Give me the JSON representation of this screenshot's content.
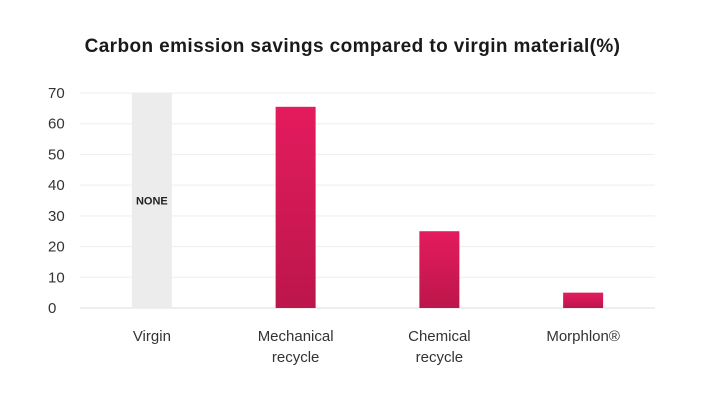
{
  "chart_data": {
    "type": "bar",
    "title": "Carbon emission savings compared to virgin material(%)",
    "categories": [
      [
        "Virgin"
      ],
      [
        "Mechanical",
        "recycle"
      ],
      [
        "Chemical",
        "recycle"
      ],
      [
        "Morphlon®"
      ]
    ],
    "values": [
      70,
      65.5,
      25,
      5
    ],
    "bar_styles": [
      "none",
      "accent",
      "accent",
      "accent"
    ],
    "data_labels": [
      "NONE",
      "",
      "",
      ""
    ],
    "ylim": [
      0,
      70
    ],
    "yticks": [
      0,
      10,
      20,
      30,
      40,
      50,
      60,
      70
    ],
    "xlabel": "",
    "ylabel": "",
    "grid": true,
    "colors": {
      "accent_top": "#e41b5e",
      "accent_bottom": "#bc164b",
      "none_bar": "#ececec",
      "grid": "#eeeeee",
      "axis": "#dddddd"
    }
  }
}
